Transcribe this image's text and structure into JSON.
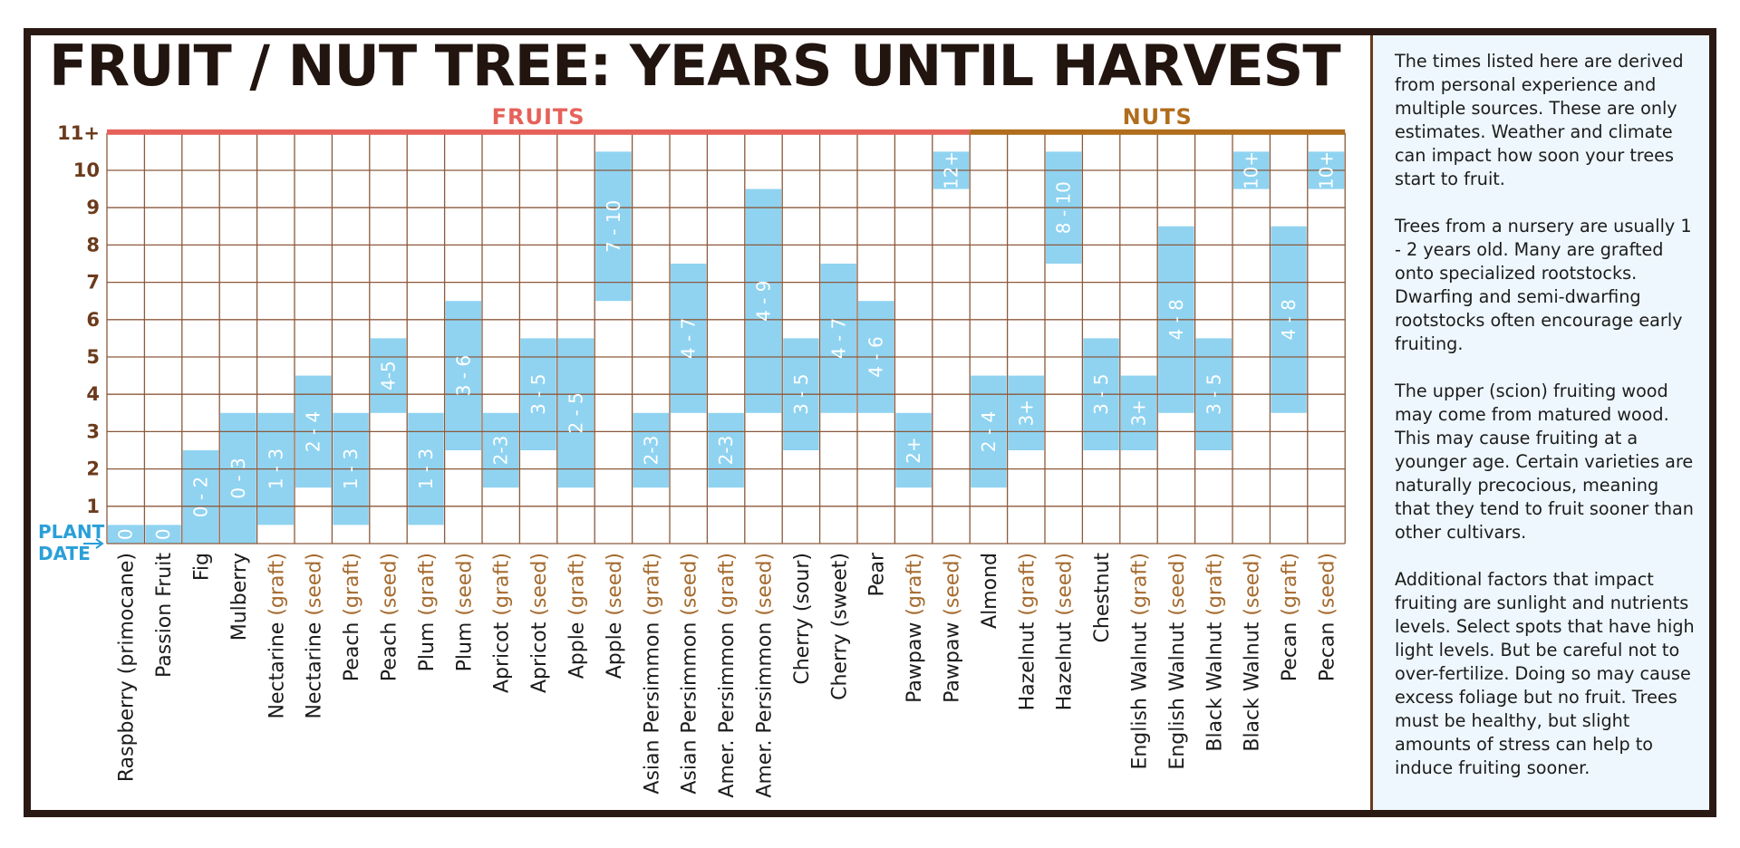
{
  "title": "FRUIT / NUT TREE: YEARS UNTIL HARVEST",
  "notes": [
    "The times listed here are derived from personal experience and multiple sources. These are only estimates. Weather and climate can impact how soon your trees start to fruit.",
    "Trees from a nursery are usually 1 - 2 years old. Many are grafted onto specialized rootstocks. Dwarfing and semi-dwarfing rootstocks often encourage early fruiting.",
    "The upper (scion) fruiting wood may come from matured wood. This may cause fruiting at a younger age. Certain varieties are naturally precocious, meaning that they tend to fruit sooner than other cultivars.",
    "Additional factors that impact fruiting are sunlight and nutrients levels. Select spots that have high light levels. But be careful not to over-fertilize. Doing so may cause excess foliage but no fruit. Trees must be healthy, but slight amounts of stress can help to induce fruiting sooner."
  ],
  "chart_data": {
    "type": "bar",
    "orientation": "vertical-range",
    "title": "FRUIT / NUT TREE: YEARS UNTIL HARVEST",
    "groups": [
      {
        "name": "FRUITS",
        "color": "#e5625a",
        "count": 23
      },
      {
        "name": "NUTS",
        "color": "#b06d1c",
        "count": 10
      }
    ],
    "y_ticks": [
      "1",
      "2",
      "3",
      "4",
      "5",
      "6",
      "7",
      "8",
      "9",
      "10",
      "11+"
    ],
    "y_origin_label": [
      "PLANT",
      "DATE"
    ],
    "ylim": [
      0,
      11
    ],
    "grid": true,
    "colors": {
      "bar": "#8fd3f1",
      "grid": "#8b5a3c",
      "axis_text": "#6b3b1d",
      "origin_label": "#2a9fd8"
    },
    "categories": [
      {
        "name": "Raspberry (primocane)",
        "qualifier": "",
        "low": 0,
        "high": 0,
        "label": "0"
      },
      {
        "name": "Passion Fruit",
        "qualifier": "",
        "low": 0,
        "high": 0,
        "label": "0"
      },
      {
        "name": "Fig",
        "qualifier": "",
        "low": 0,
        "high": 2,
        "label": "0 - 2"
      },
      {
        "name": "Mulberry",
        "qualifier": "",
        "low": 0,
        "high": 3,
        "label": "0 - 3"
      },
      {
        "name": "Nectarine ",
        "qualifier": "(graft)",
        "low": 1,
        "high": 3,
        "label": "1 - 3"
      },
      {
        "name": "Nectarine ",
        "qualifier": "(seed)",
        "low": 2,
        "high": 4,
        "label": "2 - 4"
      },
      {
        "name": "Peach ",
        "qualifier": "(graft)",
        "low": 1,
        "high": 3,
        "label": "1 - 3"
      },
      {
        "name": "Peach ",
        "qualifier": "(seed)",
        "low": 4,
        "high": 5,
        "label": "4-5"
      },
      {
        "name": "Plum ",
        "qualifier": "(graft)",
        "low": 1,
        "high": 3,
        "label": "1 - 3"
      },
      {
        "name": "Plum ",
        "qualifier": "(seed)",
        "low": 3,
        "high": 6,
        "label": "3 - 6"
      },
      {
        "name": "Apricot ",
        "qualifier": "(graft)",
        "low": 2,
        "high": 3,
        "label": "2-3"
      },
      {
        "name": "Apricot ",
        "qualifier": "(seed)",
        "low": 3,
        "high": 5,
        "label": "3 - 5"
      },
      {
        "name": "Apple ",
        "qualifier": "(graft)",
        "low": 2,
        "high": 5,
        "label": "2 - 5"
      },
      {
        "name": "Apple ",
        "qualifier": "(seed)",
        "low": 7,
        "high": 10,
        "label": "7 - 10"
      },
      {
        "name": "Asian Persimmon ",
        "qualifier": "(graft)",
        "low": 2,
        "high": 3,
        "label": "2-3"
      },
      {
        "name": "Asian Persimmon ",
        "qualifier": "(seed)",
        "low": 4,
        "high": 7,
        "label": "4 - 7"
      },
      {
        "name": "Amer. Persimmon ",
        "qualifier": "(graft)",
        "low": 2,
        "high": 3,
        "label": "2-3"
      },
      {
        "name": "Amer. Persimmon ",
        "qualifier": "(seed)",
        "low": 4,
        "high": 9,
        "label": "4 - 9"
      },
      {
        "name": "Cherry (sour)",
        "qualifier": "",
        "low": 3,
        "high": 5,
        "label": "3 - 5"
      },
      {
        "name": "Cherry (sweet)",
        "qualifier": "",
        "low": 4,
        "high": 7,
        "label": "4 - 7"
      },
      {
        "name": "Pear",
        "qualifier": "",
        "low": 4,
        "high": 6,
        "label": "4 - 6"
      },
      {
        "name": "Pawpaw ",
        "qualifier": "(graft)",
        "low": 2,
        "high": 3,
        "label": "2+"
      },
      {
        "name": "Pawpaw ",
        "qualifier": "(seed)",
        "low": 10,
        "high": 10,
        "label": "12+"
      },
      {
        "name": "Almond",
        "qualifier": "",
        "low": 2,
        "high": 4,
        "label": "2 - 4"
      },
      {
        "name": "Hazelnut ",
        "qualifier": "(graft)",
        "low": 3,
        "high": 4,
        "label": "3+"
      },
      {
        "name": "Hazelnut ",
        "qualifier": "(seed)",
        "low": 8,
        "high": 10,
        "label": "8 - 10"
      },
      {
        "name": "Chestnut",
        "qualifier": "",
        "low": 3,
        "high": 5,
        "label": "3 - 5"
      },
      {
        "name": "English Walnut ",
        "qualifier": "(graft)",
        "low": 3,
        "high": 4,
        "label": "3+"
      },
      {
        "name": "English Walnut ",
        "qualifier": "(seed)",
        "low": 4,
        "high": 8,
        "label": "4 - 8"
      },
      {
        "name": "Black Walnut ",
        "qualifier": "(graft)",
        "low": 3,
        "high": 5,
        "label": "3 - 5"
      },
      {
        "name": "Black Walnut ",
        "qualifier": "(seed)",
        "low": 10,
        "high": 10,
        "label": "10+"
      },
      {
        "name": "Pecan ",
        "qualifier": "(graft)",
        "low": 4,
        "high": 8,
        "label": "4 - 8"
      },
      {
        "name": "Pecan ",
        "qualifier": "(seed)",
        "low": 10,
        "high": 10,
        "label": "10+"
      }
    ]
  }
}
